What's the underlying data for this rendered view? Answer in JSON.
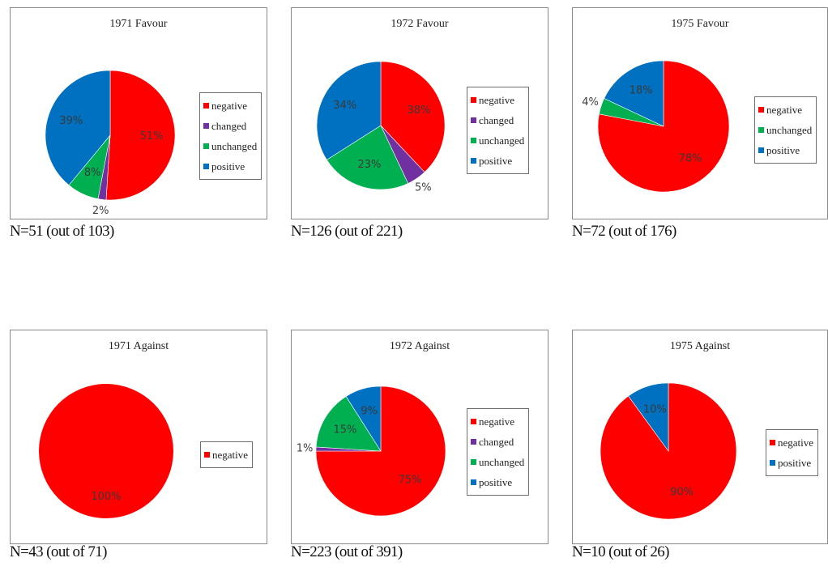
{
  "colors": {
    "negative": "#ff0000",
    "changed": "#7030a0",
    "unchanged": "#00b050",
    "positive": "#0070c0"
  },
  "chart_data": [
    {
      "type": "pie",
      "title": "1971 Favour",
      "categories": [
        "negative",
        "changed",
        "unchanged",
        "positive"
      ],
      "values": [
        51,
        2,
        8,
        39
      ],
      "labels": [
        "51%",
        "2%",
        "8%",
        "39%"
      ],
      "legend": [
        "negative",
        "changed",
        "unchanged",
        "positive"
      ],
      "caption": "N=51 (out of 103)"
    },
    {
      "type": "pie",
      "title": "1972 Favour",
      "categories": [
        "negative",
        "changed",
        "unchanged",
        "positive"
      ],
      "values": [
        38,
        5,
        23,
        34
      ],
      "labels": [
        "38%",
        "5%",
        "23%",
        "34%"
      ],
      "legend": [
        "negative",
        "changed",
        "unchanged",
        "positive"
      ],
      "caption": "N=126 (out of 221)"
    },
    {
      "type": "pie",
      "title": "1975 Favour",
      "categories": [
        "negative",
        "unchanged",
        "positive"
      ],
      "values": [
        78,
        4,
        18
      ],
      "labels": [
        "78%",
        "4%",
        "18%"
      ],
      "legend": [
        "negative",
        "unchanged",
        "positive"
      ],
      "caption": "N=72 (out of 176)"
    },
    {
      "type": "pie",
      "title": "1971 Against",
      "categories": [
        "negative"
      ],
      "values": [
        100
      ],
      "labels": [
        "100%"
      ],
      "legend": [
        "negative"
      ],
      "caption": "N=43 (out of 71)"
    },
    {
      "type": "pie",
      "title": "1972 Against",
      "categories": [
        "negative",
        "changed",
        "unchanged",
        "positive"
      ],
      "values": [
        75,
        1,
        15,
        9
      ],
      "labels": [
        "75%",
        "1%",
        "15%",
        "9%"
      ],
      "legend": [
        "negative",
        "changed",
        "unchanged",
        "positive"
      ],
      "caption": "N=223 (out of 391)"
    },
    {
      "type": "pie",
      "title": "1975 Against",
      "categories": [
        "negative",
        "positive"
      ],
      "values": [
        90,
        10
      ],
      "labels": [
        "90%",
        "10%"
      ],
      "legend": [
        "negative",
        "positive"
      ],
      "caption": "N=10 (out of 26)"
    }
  ]
}
